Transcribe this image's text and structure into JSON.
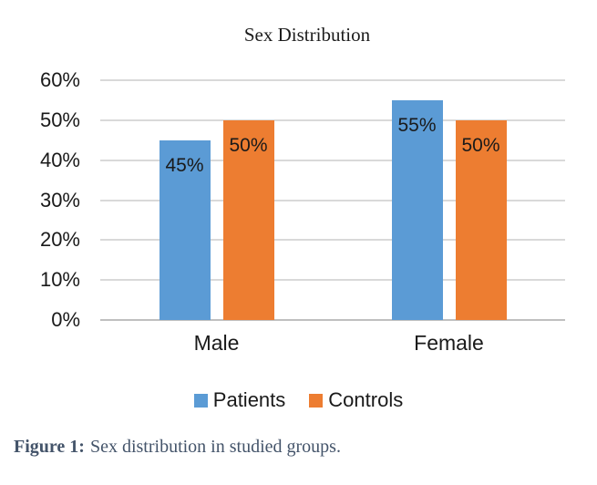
{
  "chart_data": {
    "type": "bar",
    "title": "Sex Distribution",
    "categories": [
      "Male",
      "Female"
    ],
    "series": [
      {
        "name": "Patients",
        "color": "#5B9BD5",
        "values": [
          45,
          55
        ],
        "data_labels": [
          "45%",
          "55%"
        ]
      },
      {
        "name": "Controls",
        "color": "#ED7D31",
        "values": [
          50,
          50
        ],
        "data_labels": [
          "50%",
          "50%"
        ]
      }
    ],
    "xlabel": "",
    "ylabel": "",
    "ylim": [
      0,
      60
    ],
    "ytick_step": 10,
    "ytick_labels": [
      "0%",
      "10%",
      "20%",
      "30%",
      "40%",
      "50%",
      "60%"
    ],
    "grid": true,
    "legend_position": "bottom",
    "legend_entries": [
      "Patients",
      "Controls"
    ]
  },
  "caption": {
    "label": "Figure 1:",
    "text": "Sex distribution in studied groups."
  },
  "colors": {
    "patients_blue": "#5B9BD5",
    "controls_orange": "#ED7D31",
    "gridline": "#D9D9D9",
    "axis_line": "#BFBFBF",
    "label_text": "#1A1A1A",
    "caption_text": "#44546A",
    "background": "#FFFFFF"
  }
}
